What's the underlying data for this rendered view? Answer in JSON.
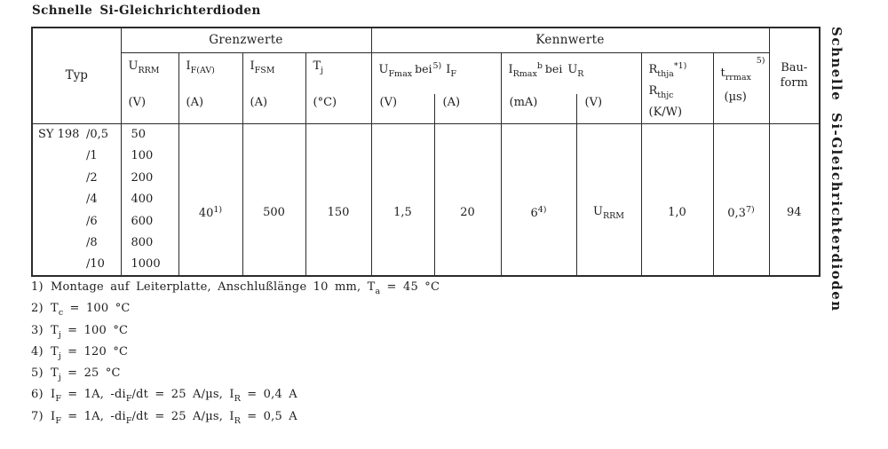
{
  "title": "Schnelle Si-Gleichrichterdioden",
  "side_label": "Schnelle Si-Gleichrichterdioden",
  "table": {
    "groups": {
      "typ": "Typ",
      "grenzwerte": "Grenzwerte",
      "kennwerte": "Kennwerte",
      "bauform": [
        "Bau-",
        "form"
      ]
    },
    "columns": {
      "urrm": {
        "base": "U",
        "sub": "RRM",
        "unit": "(V)"
      },
      "ifav": {
        "base": "I",
        "sub": "F(AV)",
        "unit": "(A)"
      },
      "ifsm": {
        "base": "I",
        "sub": "FSM",
        "unit": "(A)"
      },
      "tj": {
        "base": "T",
        "sub": "j",
        "unit": "(°C)"
      },
      "ufmax_if": {
        "base1": "U",
        "sub1": "Fmax",
        "mid": "bei",
        "sup": "5)",
        "base2": "I",
        "sub2": "F",
        "unit1": "(V)",
        "unit2": "(A)"
      },
      "irmax_ur": {
        "base1": "I",
        "sub1": "Rmax",
        "sup": "b",
        "mid": "bei",
        "base2": "U",
        "sub2": "R",
        "unit1": "(mA)",
        "unit2": "(V)"
      },
      "rth": {
        "base1": "R",
        "sub1": "thja",
        "sup1": "*1)",
        "base2": "R",
        "sub2": "thjc",
        "unit": "(K/W)"
      },
      "trr": {
        "base": "t",
        "sub": "rrmax",
        "sup": "5)",
        "unit": "(µs)"
      }
    },
    "rows": {
      "typ_prefix": "SY 198",
      "variants": [
        "/0,5",
        "/1",
        "/2",
        "/4",
        "/6",
        "/8",
        "/10"
      ],
      "urrm": [
        "50",
        "100",
        "200",
        "400",
        "600",
        "800",
        "1000"
      ]
    },
    "merged": {
      "ifav_val": "40",
      "ifav_sup": "1)",
      "ifsm_val": "500",
      "tj_val": "150",
      "ufmax_val": "1,5",
      "if_val": "20",
      "irmax_val": "6",
      "irmax_sup": "4)",
      "ur_base": "U",
      "ur_sub": "RRM",
      "rth_val": "1,0",
      "trr_val": "0,3",
      "trr_sup": "7)",
      "bauform_val": "94"
    }
  },
  "footnotes": [
    {
      "marker": "1)",
      "segments": [
        [
          "n",
          "Montage auf Leiterplatte, Anschlußlänge 10 mm, T"
        ],
        [
          "sub",
          "a"
        ],
        [
          "n",
          " = 45 °C"
        ]
      ]
    },
    {
      "marker": "2)",
      "segments": [
        [
          "n",
          "T"
        ],
        [
          "sub",
          "c"
        ],
        [
          "n",
          " = 100 °C"
        ]
      ]
    },
    {
      "marker": "3)",
      "segments": [
        [
          "n",
          "T"
        ],
        [
          "sub",
          "j"
        ],
        [
          "n",
          " = 100 °C"
        ]
      ]
    },
    {
      "marker": "4)",
      "segments": [
        [
          "n",
          "T"
        ],
        [
          "sub",
          "j"
        ],
        [
          "n",
          " = 120 °C"
        ]
      ]
    },
    {
      "marker": "5)",
      "segments": [
        [
          "n",
          "T"
        ],
        [
          "sub",
          "j"
        ],
        [
          "n",
          " = 25 °C"
        ]
      ]
    },
    {
      "marker": "6)",
      "segments": [
        [
          "n",
          "I"
        ],
        [
          "sub",
          "F"
        ],
        [
          "n",
          " = 1A, -di"
        ],
        [
          "sub",
          "F"
        ],
        [
          "n",
          "/dt = 25 A/µs, I"
        ],
        [
          "sub",
          "R"
        ],
        [
          "n",
          " = 0,4 A"
        ]
      ]
    },
    {
      "marker": "7)",
      "segments": [
        [
          "n",
          "I"
        ],
        [
          "sub",
          "F"
        ],
        [
          "n",
          " = 1A, -di"
        ],
        [
          "sub",
          "F"
        ],
        [
          "n",
          "/dt = 25 A/µs, I"
        ],
        [
          "sub",
          "R"
        ],
        [
          "n",
          " = 0,5 A"
        ]
      ]
    }
  ]
}
